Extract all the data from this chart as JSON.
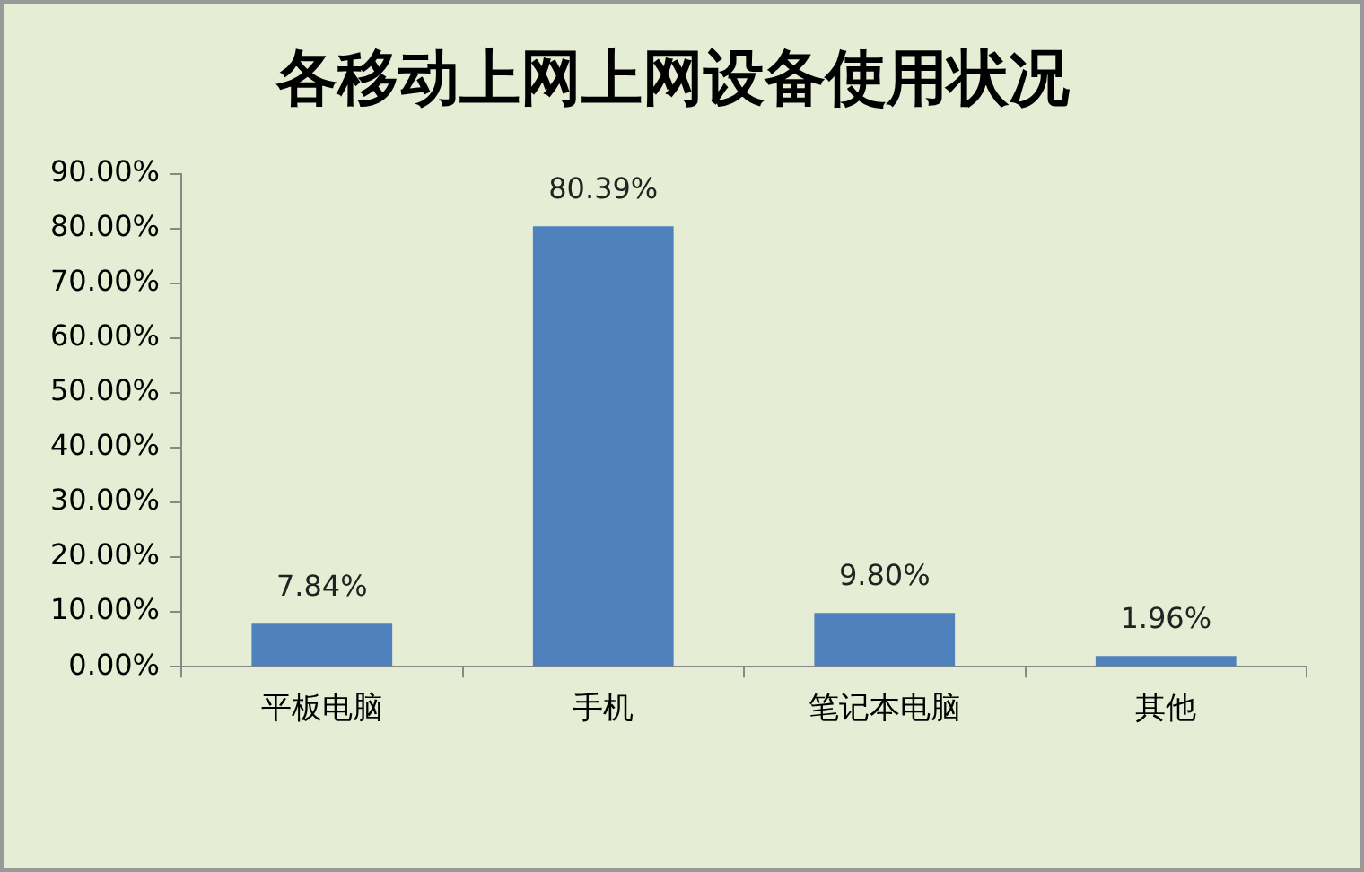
{
  "chart_data": {
    "type": "bar",
    "title": "各移动上网上网设备使用状况",
    "categories": [
      "平板电脑",
      "手机",
      "笔记本电脑",
      "其他"
    ],
    "values": [
      7.84,
      80.39,
      9.8,
      1.96
    ],
    "value_labels": [
      "7.84%",
      "80.39%",
      "9.80%",
      "1.96%"
    ],
    "color": "#4f81bd",
    "ylim": [
      0,
      90
    ],
    "yticks": [
      {
        "value": 0,
        "label": "0.00%"
      },
      {
        "value": 10,
        "label": "10.00%"
      },
      {
        "value": 20,
        "label": "20.00%"
      },
      {
        "value": 30,
        "label": "30.00%"
      },
      {
        "value": 40,
        "label": "40.00%"
      },
      {
        "value": 50,
        "label": "50.00%"
      },
      {
        "value": 60,
        "label": "60.00%"
      },
      {
        "value": 70,
        "label": "70.00%"
      },
      {
        "value": 80,
        "label": "80.00%"
      },
      {
        "value": 90,
        "label": "90.00%"
      }
    ],
    "grid": false,
    "legend": false
  }
}
